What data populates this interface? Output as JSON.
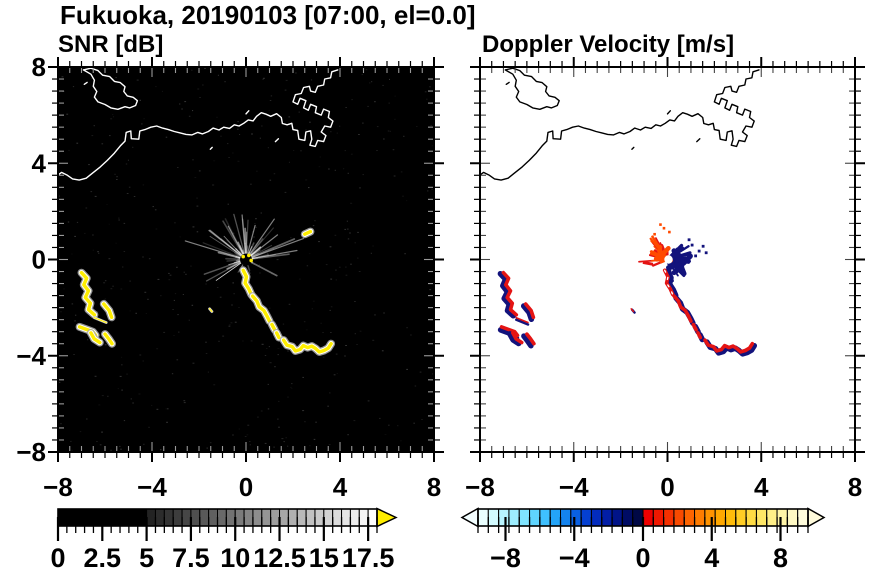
{
  "chart_data": {
    "type": "heatmap",
    "title": "Fukuoka, 20190103 [07:00, el=0.0]",
    "station": "Fukuoka",
    "date": "20190103",
    "time": "07:00",
    "elevation": "0.0",
    "xlabel": "",
    "ylabel": "",
    "panels": [
      {
        "title": "SNR [dB]",
        "background": "#000000",
        "coast_color": "#ffffff",
        "xlim": [
          -8,
          8
        ],
        "ylim": [
          -8,
          8
        ],
        "xtick_values": [
          -8,
          -4,
          0,
          4,
          8
        ],
        "xtick_labels": [
          "−8",
          "−4",
          "0",
          "4",
          "8"
        ],
        "ytick_values": [
          8,
          4,
          0,
          -4,
          -8
        ],
        "ytick_labels": [
          "8",
          "4",
          "0",
          "−4",
          "−8"
        ],
        "minor_tick_step": 0.5,
        "colorbar": {
          "range": [
            0,
            18
          ],
          "tick_values": [
            0,
            2.5,
            5,
            7.5,
            10,
            12.5,
            15,
            17.5
          ],
          "tick_labels": [
            "0",
            "2.5",
            "5",
            "7.5",
            "10",
            "12.5",
            "15",
            "17.5"
          ],
          "minor_step": 0.5,
          "solid_black_to": 5,
          "ramp_cells": 26,
          "ramp_gray_start": 26,
          "ramp_gray_end": 255,
          "over_arrow_color": "#ffee00"
        }
      },
      {
        "title": "Doppler Velocity [m/s]",
        "background": "#ffffff",
        "coast_color": "#000000",
        "xlim": [
          -8,
          8
        ],
        "ylim": [
          -8,
          8
        ],
        "xtick_values": [
          -8,
          -4,
          0,
          4,
          8
        ],
        "xtick_labels": [
          "−8",
          "−4",
          "0",
          "4",
          "8"
        ],
        "ytick_values": [
          8,
          4,
          0,
          -4,
          -8
        ],
        "ytick_labels": [],
        "minor_tick_step": 0.5,
        "colorbar": {
          "range": [
            -9.6,
            9.6
          ],
          "tick_values": [
            -8,
            -4,
            0,
            4,
            8
          ],
          "tick_labels": [
            "−8",
            "−4",
            "0",
            "4",
            "8"
          ],
          "cell_colors": [
            "#eaffff",
            "#d2fbff",
            "#b8f4ff",
            "#9deeff",
            "#7fe4ff",
            "#5fd5ff",
            "#3fc0ff",
            "#24a4f8",
            "#1483ee",
            "#0a60e2",
            "#0540d2",
            "#032cbe",
            "#021ea6",
            "#011488",
            "#000c64",
            "#000845",
            "#ec0000",
            "#f01800",
            "#f53000",
            "#f94a00",
            "#fd6400",
            "#ff7c00",
            "#ff9300",
            "#ffa800",
            "#ffbc0a",
            "#ffcd24",
            "#ffdc44",
            "#ffe766",
            "#ffef88",
            "#fff5a8",
            "#fff9c4",
            "#fffcdc"
          ],
          "under_arrow_color": "#f2feff",
          "over_arrow_color": "#fffbdc"
        }
      }
    ],
    "colors": {
      "echo_core": "#ffee00",
      "echo_rim": "#ffffff",
      "echo_halo": "#aaaaaa",
      "vel_red": "#e41414",
      "vel_orange": "#ff4a00",
      "vel_navy": "#13137c"
    },
    "coastline": {
      "island": [
        [
          -6.92,
          7.88
        ],
        [
          -6.6,
          7.95
        ],
        [
          -6.3,
          7.85
        ],
        [
          -6.1,
          7.66
        ],
        [
          -5.8,
          7.6
        ],
        [
          -5.6,
          7.4
        ],
        [
          -5.35,
          7.35
        ],
        [
          -5.15,
          7.18
        ],
        [
          -5.2,
          6.98
        ],
        [
          -5.05,
          6.8
        ],
        [
          -4.8,
          6.74
        ],
        [
          -4.62,
          6.6
        ],
        [
          -4.7,
          6.4
        ],
        [
          -4.95,
          6.3
        ],
        [
          -5.15,
          6.35
        ],
        [
          -5.45,
          6.24
        ],
        [
          -5.75,
          6.3
        ],
        [
          -6.0,
          6.44
        ],
        [
          -6.3,
          6.55
        ],
        [
          -6.45,
          6.75
        ],
        [
          -6.35,
          6.98
        ],
        [
          -6.5,
          7.2
        ],
        [
          -6.45,
          7.45
        ],
        [
          -6.6,
          7.7
        ],
        [
          -6.92,
          7.88
        ]
      ],
      "mainland": [
        [
          -8.15,
          3.4
        ],
        [
          -7.85,
          3.62
        ],
        [
          -7.6,
          3.5
        ],
        [
          -7.38,
          3.35
        ],
        [
          -7.1,
          3.3
        ],
        [
          -6.8,
          3.38
        ],
        [
          -6.55,
          3.58
        ],
        [
          -6.2,
          3.85
        ],
        [
          -5.9,
          4.12
        ],
        [
          -5.6,
          4.42
        ],
        [
          -5.35,
          4.72
        ],
        [
          -5.15,
          4.92
        ],
        [
          -5.1,
          5.28
        ],
        [
          -4.9,
          5.34
        ],
        [
          -4.88,
          5.02
        ],
        [
          -4.56,
          5.0
        ],
        [
          -4.52,
          5.34
        ],
        [
          -4.3,
          5.4
        ],
        [
          -4.05,
          5.5
        ],
        [
          -3.8,
          5.55
        ],
        [
          -3.55,
          5.46
        ],
        [
          -3.3,
          5.4
        ],
        [
          -3.05,
          5.32
        ],
        [
          -2.8,
          5.26
        ],
        [
          -2.55,
          5.2
        ],
        [
          -2.3,
          5.18
        ],
        [
          -2.05,
          5.28
        ],
        [
          -1.85,
          5.22
        ],
        [
          -1.6,
          5.32
        ],
        [
          -1.4,
          5.46
        ],
        [
          -1.15,
          5.38
        ],
        [
          -0.95,
          5.5
        ],
        [
          -0.7,
          5.45
        ],
        [
          -0.5,
          5.6
        ],
        [
          -0.3,
          5.55
        ],
        [
          -0.1,
          5.66
        ],
        [
          0.1,
          5.8
        ],
        [
          0.3,
          5.76
        ],
        [
          0.45,
          5.95
        ],
        [
          0.65,
          6.1
        ],
        [
          0.85,
          6.04
        ],
        [
          1.05,
          5.95
        ],
        [
          1.3,
          6.06
        ],
        [
          1.5,
          5.9
        ],
        [
          1.55,
          5.65
        ],
        [
          1.75,
          5.6
        ],
        [
          1.95,
          5.66
        ],
        [
          2.0,
          5.4
        ],
        [
          2.2,
          5.36
        ],
        [
          2.25,
          5.0
        ],
        [
          2.5,
          4.95
        ],
        [
          2.55,
          5.3
        ],
        [
          2.75,
          5.35
        ],
        [
          2.8,
          5.0
        ],
        [
          2.72,
          4.75
        ],
        [
          2.95,
          4.7
        ],
        [
          3.05,
          4.95
        ],
        [
          3.3,
          4.9
        ],
        [
          3.4,
          5.15
        ],
        [
          3.2,
          5.3
        ],
        [
          3.35,
          5.55
        ],
        [
          3.6,
          5.5
        ],
        [
          3.7,
          5.75
        ],
        [
          3.5,
          5.9
        ],
        [
          3.55,
          6.15
        ],
        [
          3.3,
          6.25
        ],
        [
          3.2,
          6.0
        ],
        [
          2.95,
          6.1
        ],
        [
          3.0,
          6.35
        ],
        [
          2.75,
          6.45
        ],
        [
          2.65,
          6.2
        ],
        [
          2.45,
          6.3
        ],
        [
          2.55,
          6.6
        ],
        [
          2.3,
          6.7
        ],
        [
          2.2,
          6.45
        ],
        [
          2.0,
          6.55
        ],
        [
          2.1,
          6.85
        ],
        [
          2.35,
          6.9
        ],
        [
          2.45,
          7.15
        ],
        [
          2.7,
          7.2
        ],
        [
          2.75,
          7.0
        ],
        [
          2.95,
          6.95
        ],
        [
          3.05,
          7.2
        ],
        [
          3.3,
          7.25
        ],
        [
          3.35,
          7.5
        ],
        [
          3.6,
          7.55
        ],
        [
          3.65,
          7.8
        ],
        [
          3.9,
          7.88
        ]
      ],
      "islets": [
        [
          [
            -6.88,
            7.28
          ],
          [
            -6.76,
            7.36
          ]
        ],
        [
          [
            0.0,
            6.05
          ],
          [
            0.12,
            6.18
          ]
        ],
        [
          [
            -1.52,
            4.58
          ],
          [
            -1.44,
            4.66
          ]
        ],
        [
          [
            1.25,
            4.9
          ],
          [
            1.38,
            5.02
          ]
        ]
      ]
    },
    "echoes": [
      {
        "name": "west-squiggle",
        "pts": [
          [
            -7.0,
            -0.55
          ],
          [
            -6.78,
            -0.78
          ],
          [
            -6.9,
            -1.05
          ],
          [
            -6.7,
            -1.3
          ],
          [
            -6.84,
            -1.58
          ],
          [
            -6.62,
            -1.82
          ],
          [
            -6.7,
            -2.08
          ],
          [
            -6.45,
            -2.3
          ]
        ],
        "fringe": [
          -3,
          1
        ]
      },
      {
        "name": "west-small",
        "pts": [
          [
            -6.05,
            -1.85
          ],
          [
            -5.82,
            -2.12
          ],
          [
            -5.72,
            -2.4
          ]
        ],
        "fringe": [
          -2,
          2
        ]
      },
      {
        "name": "west-thin-line",
        "pts": [
          [
            -6.45,
            -2.42
          ],
          [
            -5.95,
            -2.62
          ]
        ],
        "thin": true,
        "fringe": [
          0,
          2
        ]
      },
      {
        "name": "southwest-arm-a",
        "pts": [
          [
            -7.08,
            -2.8
          ],
          [
            -6.8,
            -2.9
          ],
          [
            -6.52,
            -3.0
          ],
          [
            -6.4,
            -3.15
          ]
        ],
        "fringe": [
          -1,
          3
        ]
      },
      {
        "name": "southwest-arm-b",
        "pts": [
          [
            -6.6,
            -3.05
          ],
          [
            -6.46,
            -3.3
          ],
          [
            -6.22,
            -3.45
          ]
        ],
        "fringe": [
          -3,
          1
        ]
      },
      {
        "name": "southwest-arm-c",
        "pts": [
          [
            -6.0,
            -3.1
          ],
          [
            -5.84,
            -3.3
          ],
          [
            -5.7,
            -3.5
          ]
        ],
        "fringe": [
          -3,
          2
        ]
      },
      {
        "name": "plume-upper",
        "pts": [
          [
            -0.12,
            -0.45
          ],
          [
            0.02,
            -0.72
          ],
          [
            -0.04,
            -0.98
          ],
          [
            0.12,
            -1.22
          ],
          [
            0.22,
            -1.45
          ]
        ],
        "bright": true,
        "fringe": [
          3,
          1
        ]
      },
      {
        "name": "plume-mid",
        "pts": [
          [
            0.28,
            -1.52
          ],
          [
            0.46,
            -1.72
          ],
          [
            0.56,
            -1.97
          ],
          [
            0.76,
            -2.12
          ],
          [
            0.9,
            -2.36
          ],
          [
            1.0,
            -2.56
          ]
        ],
        "fringe": [
          2,
          2
        ]
      },
      {
        "name": "plume-bit-1",
        "pts": [
          [
            1.1,
            -2.7
          ],
          [
            1.22,
            -2.92
          ]
        ],
        "fringe": [
          2,
          2
        ]
      },
      {
        "name": "plume-bit-2",
        "pts": [
          [
            1.3,
            -3.05
          ],
          [
            1.4,
            -3.24
          ]
        ],
        "fringe": [
          2,
          2
        ]
      },
      {
        "name": "southeast-chain",
        "pts": [
          [
            1.6,
            -3.35
          ],
          [
            1.74,
            -3.56
          ],
          [
            1.96,
            -3.62
          ],
          [
            2.1,
            -3.8
          ],
          [
            2.3,
            -3.74
          ],
          [
            2.44,
            -3.58
          ],
          [
            2.62,
            -3.66
          ],
          [
            2.8,
            -3.6
          ],
          [
            2.96,
            -3.7
          ],
          [
            3.12,
            -3.84
          ],
          [
            3.32,
            -3.78
          ],
          [
            3.5,
            -3.68
          ],
          [
            3.62,
            -3.5
          ]
        ],
        "fringe": [
          2,
          2
        ]
      },
      {
        "name": "small-speck",
        "pts": [
          [
            -1.55,
            -2.05
          ],
          [
            -1.45,
            -2.16
          ]
        ],
        "thin": true,
        "fringe": [
          1,
          1
        ]
      }
    ],
    "snr_only_echoes": [
      {
        "name": "northeast-dash",
        "pts": [
          [
            2.5,
            1.05
          ],
          [
            2.74,
            1.16
          ]
        ]
      }
    ],
    "velocity_only": {
      "red_dash": [
        [
          -1.05,
          -0.12
        ],
        [
          -0.62,
          -0.2
        ]
      ],
      "navy_specks": [
        [
          1.05,
          0.6
        ],
        [
          1.35,
          0.35
        ],
        [
          1.2,
          0.15
        ],
        [
          1.52,
          0.55
        ],
        [
          0.92,
          0.82
        ],
        [
          1.65,
          0.28
        ]
      ],
      "red_specks": [
        [
          -0.15,
          1.3
        ],
        [
          0.08,
          1.14
        ],
        [
          -0.55,
          1.05
        ],
        [
          -0.3,
          1.45
        ]
      ]
    },
    "radar": {
      "x": 0,
      "y": 0,
      "spoke_count": 58,
      "seed": 42,
      "max_len": 2.3
    },
    "speckle": {
      "count": 420,
      "seed": 7
    }
  }
}
